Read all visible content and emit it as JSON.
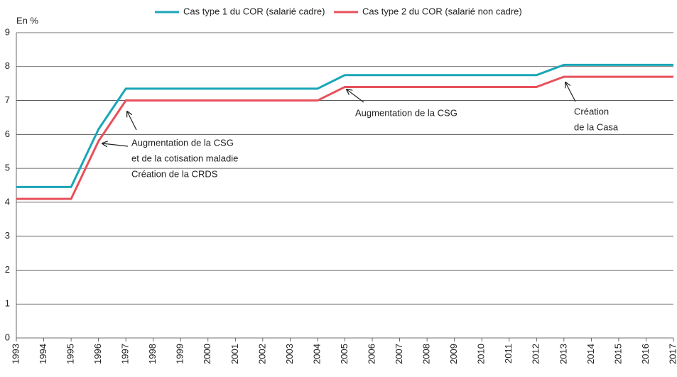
{
  "chart_data": {
    "type": "line",
    "y_label": "En %",
    "x": [
      1993,
      1994,
      1995,
      1996,
      1997,
      1998,
      1999,
      2000,
      2001,
      2002,
      2003,
      2004,
      2005,
      2006,
      2007,
      2008,
      2009,
      2010,
      2011,
      2012,
      2013,
      2014,
      2015,
      2016,
      2017
    ],
    "series": [
      {
        "name": "Cas type 1 du COR (salarié cadre)",
        "color": "#1aa5b8",
        "values": [
          4.45,
          4.45,
          4.45,
          6.15,
          7.35,
          7.35,
          7.35,
          7.35,
          7.35,
          7.35,
          7.35,
          7.35,
          7.75,
          7.75,
          7.75,
          7.75,
          7.75,
          7.75,
          7.75,
          7.75,
          8.05,
          8.05,
          8.05,
          8.05,
          8.05
        ]
      },
      {
        "name": "Cas type 2 du COR (salarié non cadre)",
        "color": "#e8505b",
        "values": [
          4.1,
          4.1,
          4.1,
          5.8,
          7.0,
          7.0,
          7.0,
          7.0,
          7.0,
          7.0,
          7.0,
          7.0,
          7.4,
          7.4,
          7.4,
          7.4,
          7.4,
          7.4,
          7.4,
          7.4,
          7.7,
          7.7,
          7.7,
          7.7,
          7.7
        ]
      }
    ],
    "annotations": [
      {
        "lines": [
          "Augmentation de la CSG",
          "et de la cotisation maladie",
          "Création de la CRDS"
        ]
      },
      {
        "lines": [
          "Augmentation de la CSG"
        ]
      },
      {
        "lines": [
          "Création",
          "de la Casa"
        ]
      }
    ],
    "xlim": [
      1993,
      2017
    ],
    "xticks": [
      1993,
      1994,
      1995,
      1996,
      1997,
      1998,
      1999,
      2000,
      2001,
      2002,
      2003,
      2004,
      2005,
      2006,
      2007,
      2008,
      2009,
      2010,
      2011,
      2012,
      2013,
      2014,
      2015,
      2016,
      2017
    ],
    "ylim": [
      0,
      9
    ],
    "yticks": [
      0,
      1,
      2,
      3,
      4,
      5,
      6,
      7,
      8,
      9
    ],
    "grid": true,
    "legend": "top"
  }
}
